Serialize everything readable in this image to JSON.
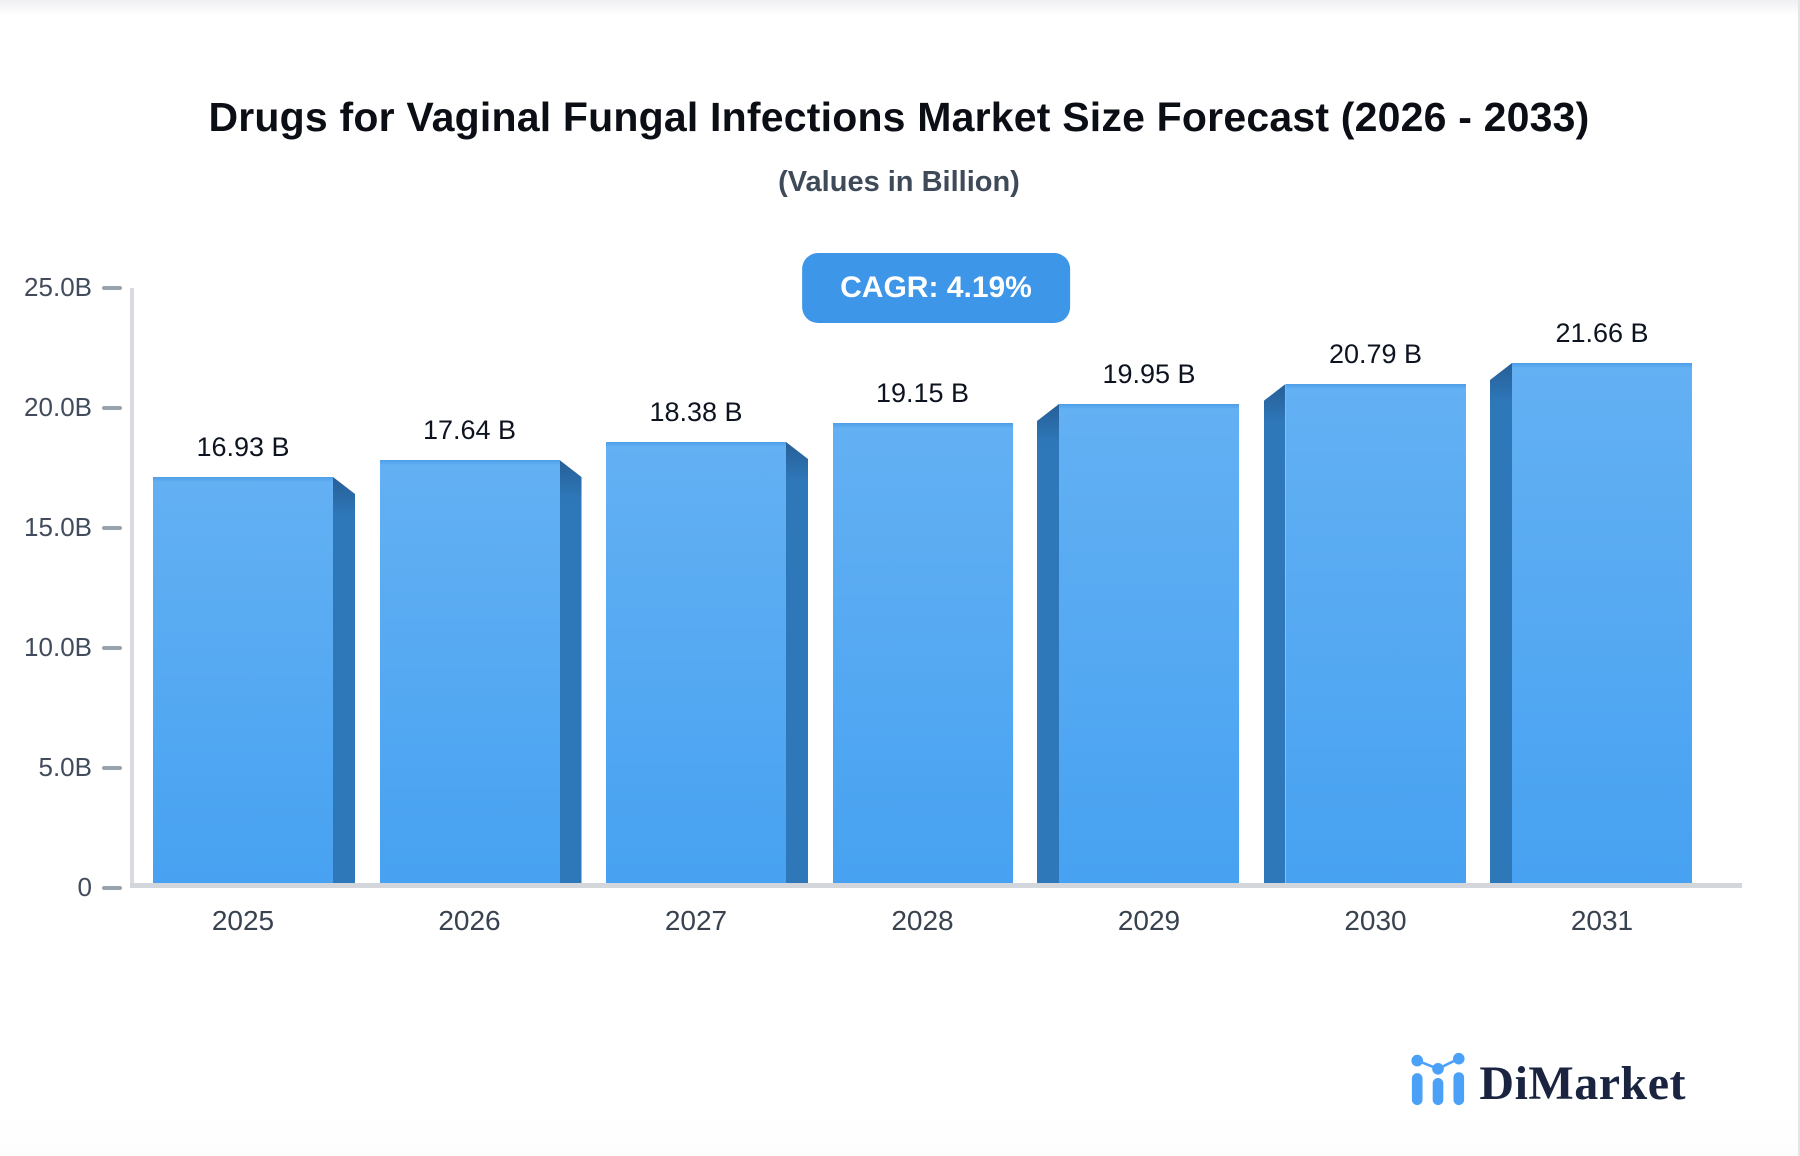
{
  "header": {
    "title": "Drugs for Vaginal Fungal Infections Market Size Forecast (2026 - 2033)",
    "subtitle": "(Values in Billion)"
  },
  "badge": {
    "label": "CAGR: 4.19%",
    "bg_color": "#3d96e8",
    "text_color": "#ffffff"
  },
  "chart_data": {
    "type": "bar",
    "title": "Drugs for Vaginal Fungal Infections Market Size Forecast (2026 - 2033)",
    "subtitle": "(Values in Billion)",
    "xlabel": "",
    "ylabel": "",
    "unit": "Billion",
    "categories": [
      "2025",
      "2026",
      "2027",
      "2028",
      "2029",
      "2030",
      "2031"
    ],
    "values": [
      16.93,
      17.64,
      18.38,
      19.15,
      19.95,
      20.79,
      21.66
    ],
    "bar_labels": [
      "16.93 B",
      "17.64 B",
      "18.38 B",
      "19.15 B",
      "19.95 B",
      "20.79 B",
      "21.66 B"
    ],
    "ylim": [
      0,
      25
    ],
    "y_ticks": [
      {
        "value": 0,
        "label": "0"
      },
      {
        "value": 5,
        "label": "5.0B"
      },
      {
        "value": 10,
        "label": "10.0B"
      },
      {
        "value": 15,
        "label": "15.0B"
      },
      {
        "value": 20,
        "label": "20.0B"
      },
      {
        "value": 25,
        "label": "25.0B"
      }
    ],
    "grid": false,
    "legend": false,
    "style_3d": true,
    "bar_side_orientation": [
      "right",
      "right",
      "right",
      "none",
      "left",
      "left",
      "left"
    ],
    "colors": {
      "bar_face_top": "#63b0f3",
      "bar_face_bottom": "#47a2f1",
      "bar_side": "#2e78ba",
      "axis": "#d3d6da",
      "tick": "#9aa2ac",
      "value_label": "#0d1420",
      "category_label": "#39424f"
    }
  },
  "logo": {
    "text": "DiMarket",
    "icon": "bar-line-chart-icon",
    "text_color": "#1a2440",
    "icon_color": "#4aa1f7"
  }
}
